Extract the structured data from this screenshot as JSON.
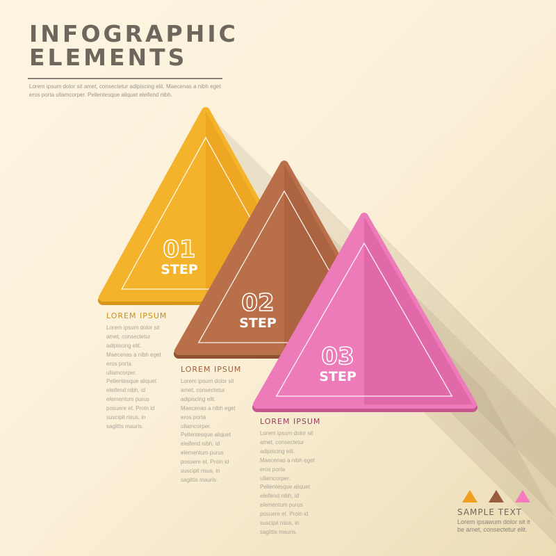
{
  "header": {
    "title_line1": "INFOGRAPHIC",
    "title_line2": "ELEMENTS",
    "intro": "Lorem ipsum dolor sit amet, consectetur adipiscing elit. Maecenas a nibh eget eros porta ullamcorper. Pellentesque aliquet eleifend nibh."
  },
  "steps": [
    {
      "number": "01",
      "label": "STEP",
      "color": "#f3b32a",
      "shade": "#e9a31f",
      "edge": "#d9961b",
      "heading": "LOREM IPSUM",
      "heading_color": "#c8901e",
      "body": "Lorem ipsum dolor sit\namet, consectetur\nadipiscing elit.\nMaecenas a nibh eget\neros porta\nullamcorper.\nPellentesque aliquet\neleifend nibh, id\nelementum purus\nposuere et. Proin id\nsuscipit risus, in\nsagittis mauris."
    },
    {
      "number": "02",
      "label": "STEP",
      "color": "#b9704a",
      "shade": "#a6603c",
      "edge": "#8e5232",
      "heading": "LOREM IPSUM",
      "heading_color": "#a0603c",
      "body": "Lorem ipsum dolor sit\namet, consectetur\nadipiscing elit.\nMaecenas a nibh eget\neros porta\nullamcorper.\nPellentesque aliquet\neleifend nibh, id\nelementum purus\nposuere et. Proin id\nsuscipit risus, in\nsagittis mauris."
    },
    {
      "number": "03",
      "label": "STEP",
      "color": "#ee7bb9",
      "shade": "#db62a2",
      "edge": "#c9558f",
      "heading": "LOREM IPSUM",
      "heading_color": "#93405f",
      "body": "Lorem ipsum dolor sit\namet, consectetur\nadipiscing elit.\nMaecenas a nibh eget\neros porta\nullamcorper.\nPellentesque aliquet\neleifend nibh, id\nelementum purus\nposuere et. Proin id\nsuscipit risus, in\nsagittis mauris."
    }
  ],
  "legend": {
    "title": "SAMPLE TEXT",
    "text": "Lorem ipsawum dolor sit it\nbe amet, consectetur elit.",
    "colors": [
      "#f0a020",
      "#9a5c3e",
      "#f47bbc"
    ]
  }
}
